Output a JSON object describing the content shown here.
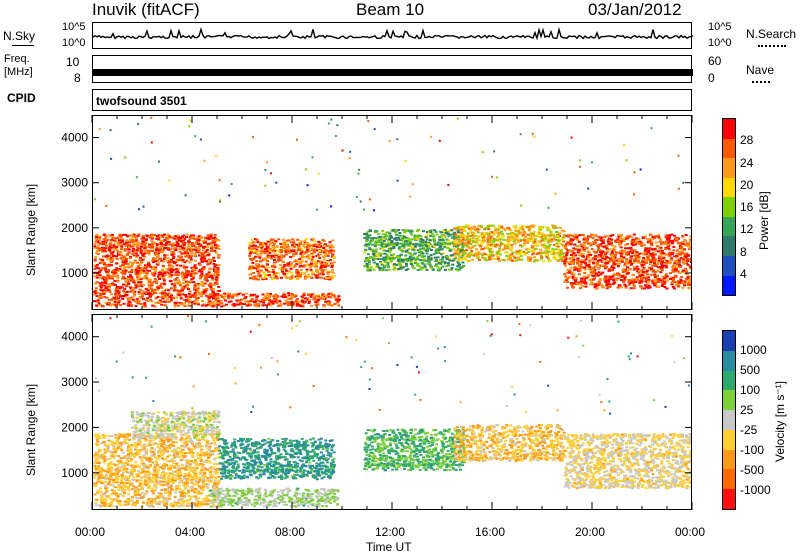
{
  "header": {
    "station": "Inuvik (fitACF)",
    "beam": "Beam 10",
    "date": "03/Jan/2012"
  },
  "strip_labels": {
    "nsky": "N.Sky",
    "freq_line1": "Freq.",
    "freq_line2": "[MHz]",
    "cpid": "CPID",
    "nsearch": "N.Search",
    "nave": "Nave",
    "program": "twofsound 3501",
    "nsky_ticks": [
      "10^5",
      "10^0"
    ],
    "nsearch_ticks": [
      "10^5",
      "10^0"
    ],
    "freq_ticks": [
      "10",
      "8"
    ],
    "nave_ticks": [
      "60",
      "0"
    ]
  },
  "x_axis": {
    "label": "Time UT",
    "ticks": [
      "00:00",
      "04:00",
      "08:00",
      "12:00",
      "16:00",
      "20:00",
      "00:00"
    ]
  },
  "power_panel": {
    "ylabel": "Slant Range [km]",
    "cbar_label": "Power [dB]",
    "cbar_ticks": [
      "28",
      "24",
      "20",
      "16",
      "12",
      "8",
      "4"
    ],
    "cbar_colors": [
      "#ff0000",
      "#ff5a00",
      "#ff9a1a",
      "#ffd800",
      "#7fd000",
      "#3aa35a",
      "#2f7a6a",
      "#2050c0",
      "#0018ff"
    ]
  },
  "velocity_panel": {
    "ylabel": "Slant Range [km]",
    "cbar_label": "Velocity [m s⁻¹]",
    "cbar_ticks": [
      "1000",
      "500",
      "100",
      "25",
      "-25",
      "-100",
      "-500",
      "-1000"
    ],
    "cbar_colors": [
      "#1a3fb0",
      "#2a8aa0",
      "#2fa870",
      "#7ecf3a",
      "#c8c8c8",
      "#ffcf33",
      "#ff9a1a",
      "#ff6a00",
      "#ff1010"
    ]
  },
  "chart_data": [
    {
      "type": "heatmap",
      "title": "Power",
      "xlabel": "Time UT",
      "ylabel": "Slant Range [km]",
      "xlim": [
        "00:00",
        "24:00"
      ],
      "ylim": [
        180,
        4500
      ],
      "colorbar": {
        "label": "Power [dB]",
        "range": [
          0,
          30
        ],
        "ticks": [
          4,
          8,
          12,
          16,
          20,
          24,
          28
        ]
      },
      "regions": [
        {
          "t_start": 0.0,
          "t_end": 5.0,
          "range_min": 300,
          "range_max": 1900,
          "value": 27
        },
        {
          "t_start": 4.6,
          "t_end": 9.8,
          "range_min": 300,
          "range_max": 600,
          "value": 27
        },
        {
          "t_start": 6.2,
          "t_end": 9.6,
          "range_min": 900,
          "range_max": 1800,
          "value": 25
        },
        {
          "t_start": 10.8,
          "t_end": 14.8,
          "range_min": 1100,
          "range_max": 2000,
          "value": 12
        },
        {
          "t_start": 14.4,
          "t_end": 18.8,
          "range_min": 1300,
          "range_max": 2100,
          "value": 20
        },
        {
          "t_start": 18.8,
          "t_end": 24.0,
          "range_min": 700,
          "range_max": 1900,
          "value": 27
        }
      ]
    },
    {
      "type": "heatmap",
      "title": "Velocity",
      "xlabel": "Time UT",
      "ylabel": "Slant Range [km]",
      "xlim": [
        "00:00",
        "24:00"
      ],
      "ylim": [
        180,
        4500
      ],
      "colorbar": {
        "label": "Velocity [m s⁻¹]",
        "range": [
          -1000,
          1000
        ],
        "ticks": [
          1000,
          500,
          100,
          25,
          -25,
          -100,
          -500,
          -1000
        ]
      },
      "regions": [
        {
          "t_start": 0.0,
          "t_end": 5.0,
          "range_min": 300,
          "range_max": 1900,
          "value": -300
        },
        {
          "t_start": 1.5,
          "t_end": 5.0,
          "range_min": 1800,
          "range_max": 2400,
          "value": 0
        },
        {
          "t_start": 4.6,
          "t_end": 9.8,
          "range_min": 300,
          "range_max": 700,
          "value": 150
        },
        {
          "t_start": 5.0,
          "t_end": 9.6,
          "range_min": 900,
          "range_max": 1800,
          "value": 600
        },
        {
          "t_start": 10.8,
          "t_end": 14.8,
          "range_min": 1100,
          "range_max": 2000,
          "value": 400
        },
        {
          "t_start": 14.4,
          "t_end": 18.8,
          "range_min": 1300,
          "range_max": 2100,
          "value": -300
        },
        {
          "t_start": 18.8,
          "t_end": 24.0,
          "range_min": 700,
          "range_max": 1900,
          "value": -150
        }
      ]
    }
  ]
}
